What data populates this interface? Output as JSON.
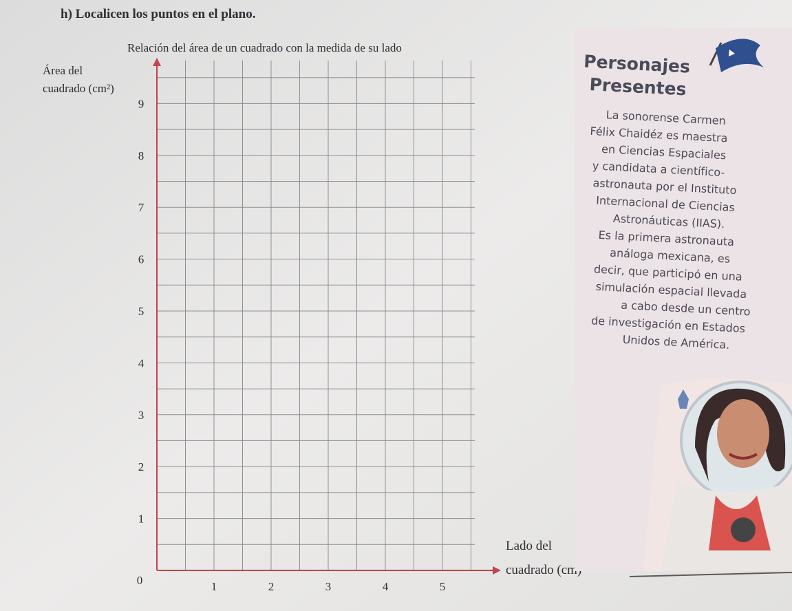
{
  "instruction": "h) Localicen los puntos en el plano.",
  "plane": {
    "title": "Relación del área de un cuadrado con la medida de su lado",
    "y_label": [
      "Área del",
      "cuadrado (cm²)"
    ],
    "x_label": [
      "Lado del",
      "cuadrado (cm)"
    ],
    "origin": "0",
    "xticks": [
      1,
      2,
      3,
      4,
      5
    ],
    "yticks": [
      1,
      2,
      3,
      4,
      5,
      6,
      7,
      8,
      9
    ]
  },
  "sidebar": {
    "title": [
      "Personajes",
      "Presentes"
    ],
    "text": [
      "La sonorense Carmen",
      "Félix Chaidéz es maestra",
      "en Ciencias Espaciales",
      "y candidata a científico-",
      "astronauta por el Instituto",
      "Internacional de Ciencias",
      "Astronáuticas (IIAS).",
      "Es la primera astronauta",
      "análoga mexicana, es",
      "decir, que participó en una",
      "simulación espacial llevada",
      "a cabo desde un centro",
      "de investigación en Estados",
      "Unidos de América."
    ]
  }
}
